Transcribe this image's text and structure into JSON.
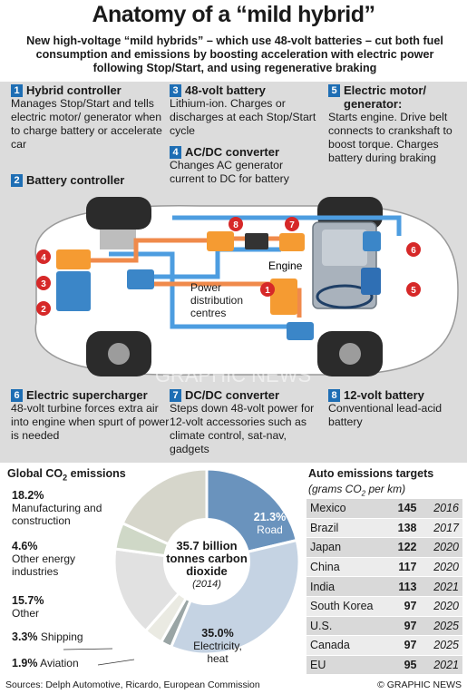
{
  "title": "Anatomy of a “mild hybrid”",
  "subtitle": "New high-voltage “mild hybrids” – which use 48-volt batteries – cut both fuel consumption and emissions by boosting acceleration with electric power following Stop/Start, and using regenerative braking",
  "components": [
    {
      "num": "1",
      "name": "Hybrid controller",
      "desc": "Manages Stop/Start and tells electric motor/ generator when to charge battery or accelerate car"
    },
    {
      "num": "2",
      "name": "Battery controller",
      "desc": ""
    },
    {
      "num": "3",
      "name": "48-volt battery",
      "desc": "Lithium-ion. Charges or discharges at each Stop/Start cycle"
    },
    {
      "num": "4",
      "name": "AC/DC converter",
      "desc": "Changes AC generator current to DC for battery"
    },
    {
      "num": "5",
      "name": "Electric motor/ generator:",
      "desc": "Starts engine. Drive belt connects to crankshaft to boost torque. Charges battery during braking"
    },
    {
      "num": "6",
      "name": "Electric supercharger",
      "desc": "48-volt turbine forces extra air into engine when spurt of power is needed"
    },
    {
      "num": "7",
      "name": "DC/DC converter",
      "desc": "Steps down 48-volt power for 12-volt accessories such as climate control, sat-nav, gadgets"
    },
    {
      "num": "8",
      "name": "12-volt battery",
      "desc": "Conventional lead-acid battery"
    }
  ],
  "diagram_labels": {
    "engine": "Engine",
    "pdc": "Power distribution centres",
    "markers": [
      "4",
      "3",
      "2",
      "8",
      "7",
      "6",
      "1",
      "5"
    ]
  },
  "emissions": {
    "title_pre": "Global CO",
    "title_sub": "2",
    "title_post": " emissions",
    "center_total": "35.7 billion",
    "center_unit": "tonnes carbon dioxide",
    "center_year": "(2014)",
    "colors": {
      "road": "#6a93bd",
      "electricity": "#c5d3e3",
      "other": "#e1e1e1",
      "energy": "#cfd8c7",
      "manufacturing": "#d6d6cb",
      "shipping": "#eaeae2",
      "aviation": "#9aa5a5"
    }
  },
  "chart_data": {
    "type": "pie",
    "title": "Global CO2 emissions",
    "slices": [
      {
        "label": "Road",
        "value": 21.3
      },
      {
        "label": "Electricity, heat",
        "value": 35.0
      },
      {
        "label": "Aviation",
        "value": 1.9
      },
      {
        "label": "Shipping",
        "value": 3.3
      },
      {
        "label": "Other",
        "value": 15.7
      },
      {
        "label": "Other energy industries",
        "value": 4.6
      },
      {
        "label": "Manufacturing and construction",
        "value": 18.2
      }
    ]
  },
  "pie_labels": {
    "road_pct": "21.3%",
    "road": "Road",
    "electricity_pct": "35.0%",
    "electricity": "Electricity, heat",
    "aviation_pct": "1.9%",
    "aviation": "Aviation",
    "shipping_pct": "3.3%",
    "shipping": "Shipping",
    "other_pct": "15.7%",
    "other": "Other",
    "energy_pct": "4.6%",
    "energy": "Other energy industries",
    "manufacturing_pct": "18.2%",
    "manufacturing": "Manufacturing and construction"
  },
  "targets": {
    "title": "Auto emissions targets",
    "subtitle_pre": "(grams CO",
    "subtitle_sub": "2",
    "subtitle_post": " per km)",
    "rows": [
      {
        "country": "Mexico",
        "value": "145",
        "year": "2016"
      },
      {
        "country": "Brazil",
        "value": "138",
        "year": "2017"
      },
      {
        "country": "Japan",
        "value": "122",
        "year": "2020"
      },
      {
        "country": "China",
        "value": "117",
        "year": "2020"
      },
      {
        "country": "India",
        "value": "113",
        "year": "2021"
      },
      {
        "country": "South Korea",
        "value": "97",
        "year": "2020"
      },
      {
        "country": "U.S.",
        "value": "97",
        "year": "2025"
      },
      {
        "country": "Canada",
        "value": "97",
        "year": "2025"
      },
      {
        "country": "EU",
        "value": "95",
        "year": "2021"
      }
    ]
  },
  "footer": {
    "sources": "Sources: Delph Automotive, Ricardo, European Commission",
    "credit": "© GRAPHIC NEWS"
  },
  "watermark": "GRAPHIC NEWS"
}
